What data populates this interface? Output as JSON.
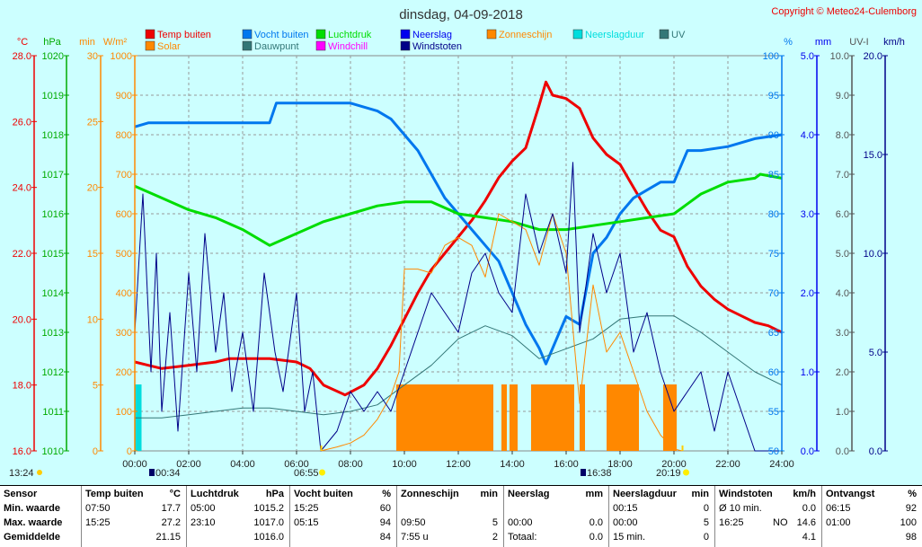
{
  "title": "dinsdag, 04-09-2018",
  "copyright": "Copyright © Meteo24-Culemborg",
  "legend": [
    {
      "label": "Temp buiten",
      "color": "#ee0000"
    },
    {
      "label": "Vocht buiten",
      "color": "#0077ee"
    },
    {
      "label": "Luchtdruk",
      "color": "#00dd00"
    },
    {
      "label": "Neerslag",
      "color": "#0000ee"
    },
    {
      "label": "Zonneschijn",
      "color": "#ff8800"
    },
    {
      "label": "Neerslagduur",
      "color": "#00dddd"
    },
    {
      "label": "UV",
      "color": "#337777"
    },
    {
      "label": "Solar",
      "color": "#ff8800"
    },
    {
      "label": "Dauwpunt",
      "color": "#337777"
    },
    {
      "label": "Windchill",
      "color": "#ff00ff"
    },
    {
      "label": "Windstoten",
      "color": "#000088"
    }
  ],
  "axes": {
    "temp": {
      "unit": "°C",
      "ticks": [
        "16.0",
        "18.0",
        "20.0",
        "22.0",
        "24.0",
        "26.0",
        "28.0"
      ]
    },
    "pressure": {
      "unit": "hPa",
      "ticks": [
        "1010",
        "1011",
        "1012",
        "1013",
        "1014",
        "1015",
        "1016",
        "1017",
        "1018",
        "1019",
        "1020"
      ]
    },
    "minutes": {
      "unit": "min",
      "ticks": [
        "0",
        "5",
        "10",
        "15",
        "20",
        "25",
        "30"
      ]
    },
    "solar": {
      "unit": "W/m²",
      "ticks": [
        "0",
        "100",
        "200",
        "300",
        "400",
        "500",
        "600",
        "700",
        "800",
        "900",
        "1000"
      ]
    },
    "humidity": {
      "unit": "%",
      "ticks": [
        "50",
        "55",
        "60",
        "65",
        "70",
        "75",
        "80",
        "85",
        "90",
        "95",
        "100"
      ]
    },
    "rain": {
      "unit": "mm",
      "ticks": [
        "0.0",
        "1.0",
        "2.0",
        "3.0",
        "4.0",
        "5.0"
      ]
    },
    "uv": {
      "unit": "UV-I",
      "ticks": [
        "0.0",
        "1.0",
        "2.0",
        "3.0",
        "4.0",
        "5.0",
        "6.0",
        "7.0",
        "8.0",
        "9.0",
        "10.0"
      ]
    },
    "wind": {
      "unit": "km/h",
      "ticks": [
        "0.0",
        "5.0",
        "10.0",
        "15.0",
        "20.0"
      ]
    },
    "time_ticks": [
      "00:00",
      "02:00",
      "04:00",
      "06:00",
      "08:00",
      "10:00",
      "12:00",
      "14:00",
      "16:00",
      "18:00",
      "20:00",
      "22:00",
      "24:00"
    ]
  },
  "markers": {
    "moonrise": "13:24",
    "moonset": "00:34",
    "sunrise": "06:55",
    "sunset": "20:19",
    "moon_transit": "16:38"
  },
  "chart_data": {
    "type": "line",
    "x_unit": "hour of day",
    "xlim": [
      0,
      24
    ],
    "series": [
      {
        "name": "Temp buiten",
        "axis": "temp",
        "ylim": [
          16,
          28
        ],
        "points": [
          [
            0,
            18.7
          ],
          [
            0.5,
            18.6
          ],
          [
            1,
            18.5
          ],
          [
            2,
            18.6
          ],
          [
            3,
            18.7
          ],
          [
            3.5,
            18.8
          ],
          [
            5,
            18.8
          ],
          [
            6,
            18.7
          ],
          [
            6.5,
            18.5
          ],
          [
            7,
            18.0
          ],
          [
            7.8,
            17.7
          ],
          [
            8.5,
            18.0
          ],
          [
            9,
            18.5
          ],
          [
            9.5,
            19.2
          ],
          [
            10,
            20.0
          ],
          [
            10.5,
            20.8
          ],
          [
            11,
            21.5
          ],
          [
            11.5,
            22.0
          ],
          [
            12,
            22.5
          ],
          [
            12.5,
            23.0
          ],
          [
            13,
            23.6
          ],
          [
            13.5,
            24.3
          ],
          [
            14,
            24.8
          ],
          [
            14.5,
            25.2
          ],
          [
            15,
            26.5
          ],
          [
            15.25,
            27.2
          ],
          [
            15.5,
            26.8
          ],
          [
            16,
            26.7
          ],
          [
            16.5,
            26.4
          ],
          [
            17,
            25.5
          ],
          [
            17.5,
            25.0
          ],
          [
            18,
            24.7
          ],
          [
            18.5,
            24.0
          ],
          [
            19,
            23.3
          ],
          [
            19.5,
            22.7
          ],
          [
            20,
            22.5
          ],
          [
            20.5,
            21.6
          ],
          [
            21,
            21.0
          ],
          [
            21.5,
            20.6
          ],
          [
            22,
            20.3
          ],
          [
            22.5,
            20.1
          ],
          [
            23,
            19.9
          ],
          [
            23.5,
            19.8
          ],
          [
            24,
            19.6
          ]
        ]
      },
      {
        "name": "Vocht buiten",
        "axis": "humidity",
        "ylim": [
          50,
          100
        ],
        "points": [
          [
            0,
            91
          ],
          [
            0.5,
            91.5
          ],
          [
            5,
            91.5
          ],
          [
            5.25,
            94
          ],
          [
            7,
            94
          ],
          [
            8,
            94
          ],
          [
            9,
            93
          ],
          [
            9.5,
            92
          ],
          [
            10,
            90
          ],
          [
            10.5,
            88
          ],
          [
            11,
            85
          ],
          [
            11.5,
            82
          ],
          [
            12,
            80
          ],
          [
            12.5,
            78
          ],
          [
            13,
            76
          ],
          [
            13.5,
            74
          ],
          [
            14,
            70
          ],
          [
            14.5,
            66
          ],
          [
            15,
            63
          ],
          [
            15.25,
            61
          ],
          [
            15.5,
            63
          ],
          [
            16,
            67
          ],
          [
            16.5,
            66
          ],
          [
            17,
            75
          ],
          [
            17.5,
            77
          ],
          [
            18,
            80
          ],
          [
            18.5,
            82
          ],
          [
            19,
            83
          ],
          [
            19.5,
            84
          ],
          [
            20,
            84
          ],
          [
            20.5,
            88
          ],
          [
            21,
            88
          ],
          [
            22,
            88.5
          ],
          [
            22.5,
            89
          ],
          [
            23,
            89.5
          ],
          [
            24,
            90
          ]
        ]
      },
      {
        "name": "Luchtdruk",
        "axis": "pressure",
        "ylim": [
          1010,
          1020
        ],
        "points": [
          [
            0,
            1016.7
          ],
          [
            1,
            1016.4
          ],
          [
            2,
            1016.1
          ],
          [
            3,
            1015.9
          ],
          [
            4,
            1015.6
          ],
          [
            5,
            1015.2
          ],
          [
            6,
            1015.5
          ],
          [
            7,
            1015.8
          ],
          [
            8,
            1016.0
          ],
          [
            9,
            1016.2
          ],
          [
            10,
            1016.3
          ],
          [
            11,
            1016.3
          ],
          [
            12,
            1016.0
          ],
          [
            13,
            1015.9
          ],
          [
            14,
            1015.8
          ],
          [
            15,
            1015.6
          ],
          [
            16,
            1015.6
          ],
          [
            17,
            1015.7
          ],
          [
            18,
            1015.8
          ],
          [
            19,
            1015.9
          ],
          [
            20,
            1016.0
          ],
          [
            21,
            1016.5
          ],
          [
            22,
            1016.8
          ],
          [
            23,
            1016.9
          ],
          [
            23.2,
            1017.0
          ],
          [
            24,
            1016.9
          ]
        ]
      },
      {
        "name": "Dauwpunt",
        "axis": "temp",
        "ylim": [
          16,
          28
        ],
        "points": [
          [
            0,
            17.0
          ],
          [
            1,
            17.0
          ],
          [
            2,
            17.1
          ],
          [
            3,
            17.2
          ],
          [
            4,
            17.3
          ],
          [
            5,
            17.3
          ],
          [
            6,
            17.2
          ],
          [
            7,
            17.1
          ],
          [
            8,
            17.2
          ],
          [
            9,
            17.4
          ],
          [
            10,
            18.0
          ],
          [
            11,
            18.6
          ],
          [
            12,
            19.4
          ],
          [
            13,
            19.8
          ],
          [
            14,
            19.5
          ],
          [
            15,
            18.8
          ],
          [
            16,
            19.1
          ],
          [
            17,
            19.4
          ],
          [
            18,
            20.0
          ],
          [
            19,
            20.1
          ],
          [
            20,
            20.1
          ],
          [
            21,
            19.6
          ],
          [
            22,
            19.0
          ],
          [
            23,
            18.4
          ],
          [
            24,
            18.0
          ]
        ]
      },
      {
        "name": "Solar",
        "axis": "solar",
        "ylim": [
          0,
          1000
        ],
        "points": [
          [
            6.9,
            0
          ],
          [
            7.5,
            10
          ],
          [
            8,
            20
          ],
          [
            8.5,
            40
          ],
          [
            9,
            80
          ],
          [
            9.5,
            140
          ],
          [
            9.8,
            200
          ],
          [
            10,
            460
          ],
          [
            10.5,
            460
          ],
          [
            11,
            450
          ],
          [
            11.5,
            520
          ],
          [
            12,
            540
          ],
          [
            12.5,
            520
          ],
          [
            13,
            440
          ],
          [
            13.5,
            600
          ],
          [
            14,
            580
          ],
          [
            14.5,
            560
          ],
          [
            15,
            470
          ],
          [
            15.5,
            600
          ],
          [
            16,
            500
          ],
          [
            16.5,
            120
          ],
          [
            17,
            420
          ],
          [
            17.5,
            250
          ],
          [
            18,
            300
          ],
          [
            18.5,
            200
          ],
          [
            19,
            100
          ],
          [
            19.5,
            40
          ],
          [
            20,
            5
          ],
          [
            20.3,
            0
          ]
        ]
      },
      {
        "name": "Windstoten",
        "axis": "wind",
        "ylim": [
          0,
          20
        ],
        "points": [
          [
            0,
            6
          ],
          [
            0.3,
            13
          ],
          [
            0.6,
            4
          ],
          [
            0.8,
            10
          ],
          [
            1,
            2
          ],
          [
            1.3,
            7
          ],
          [
            1.6,
            1
          ],
          [
            2,
            9
          ],
          [
            2.3,
            4
          ],
          [
            2.6,
            11
          ],
          [
            3,
            5
          ],
          [
            3.3,
            8
          ],
          [
            3.6,
            3
          ],
          [
            4,
            6
          ],
          [
            4.4,
            2
          ],
          [
            4.8,
            9
          ],
          [
            5.2,
            5
          ],
          [
            5.5,
            3
          ],
          [
            6,
            8
          ],
          [
            6.3,
            2
          ],
          [
            6.6,
            4
          ],
          [
            6.9,
            0
          ],
          [
            7.5,
            1
          ],
          [
            8,
            3
          ],
          [
            8.5,
            2
          ],
          [
            9,
            3
          ],
          [
            9.5,
            2
          ],
          [
            10,
            4
          ],
          [
            10.5,
            6
          ],
          [
            11,
            8
          ],
          [
            11.5,
            7
          ],
          [
            12,
            6
          ],
          [
            12.5,
            9
          ],
          [
            13,
            10
          ],
          [
            13.5,
            8
          ],
          [
            14,
            7
          ],
          [
            14.5,
            13
          ],
          [
            15,
            10
          ],
          [
            15.5,
            12
          ],
          [
            16,
            9
          ],
          [
            16.25,
            14.6
          ],
          [
            16.5,
            6
          ],
          [
            17,
            11
          ],
          [
            17.5,
            8
          ],
          [
            18,
            10
          ],
          [
            18.5,
            5
          ],
          [
            19,
            7
          ],
          [
            19.5,
            4
          ],
          [
            20,
            2
          ],
          [
            20.5,
            3
          ],
          [
            21,
            4
          ],
          [
            21.5,
            1
          ],
          [
            22,
            4
          ],
          [
            22.5,
            2
          ],
          [
            23,
            0
          ],
          [
            24,
            0
          ]
        ]
      }
    ],
    "sunshine_blocks_hours": [
      [
        9.7,
        13.3
      ],
      [
        13.6,
        13.8
      ],
      [
        13.9,
        14.2
      ],
      [
        14.7,
        16.3
      ],
      [
        16.5,
        16.7
      ],
      [
        17.5,
        18.7
      ],
      [
        19.6,
        20.1
      ]
    ],
    "rain_duration_blocks_hours": [
      [
        0,
        0.25
      ]
    ]
  },
  "stats": {
    "columns": [
      {
        "title": "Sensor",
        "unit": "",
        "rows": [
          [
            "Min. waarde",
            "",
            ""
          ],
          [
            "Max. waarde",
            "",
            ""
          ],
          [
            "Gemiddelde",
            "",
            ""
          ]
        ]
      },
      {
        "title": "Temp buiten",
        "unit": "°C",
        "rows": [
          [
            "07:50",
            "",
            "17.7"
          ],
          [
            "15:25",
            "",
            "27.2"
          ],
          [
            "",
            "",
            "21.15"
          ]
        ]
      },
      {
        "title": "Luchtdruk",
        "unit": "hPa",
        "rows": [
          [
            "05:00",
            "",
            "1015.2"
          ],
          [
            "23:10",
            "",
            "1017.0"
          ],
          [
            "",
            "",
            "1016.0"
          ]
        ]
      },
      {
        "title": "Vocht buiten",
        "unit": "%",
        "rows": [
          [
            "15:25",
            "",
            "60"
          ],
          [
            "05:15",
            "",
            "94"
          ],
          [
            "",
            "",
            "84"
          ]
        ]
      },
      {
        "title": "Zonneschijn",
        "unit": "min",
        "rows": [
          [
            "",
            "",
            ""
          ],
          [
            "09:50",
            "",
            "5"
          ],
          [
            "7:55 u",
            "",
            "2"
          ]
        ]
      },
      {
        "title": "Neerslag",
        "unit": "mm",
        "rows": [
          [
            "",
            "",
            ""
          ],
          [
            "00:00",
            "",
            "0.0"
          ],
          [
            "Totaal:",
            "",
            "0.0"
          ]
        ]
      },
      {
        "title": "Neerslagduur",
        "unit": "min",
        "rows": [
          [
            "00:15",
            "",
            "0"
          ],
          [
            "00:00",
            "",
            "5"
          ],
          [
            "15 min.",
            "",
            "0"
          ]
        ]
      },
      {
        "title": "Windstoten",
        "unit": "km/h",
        "rows": [
          [
            "Ø 10 min.",
            "",
            "0.0"
          ],
          [
            "16:25",
            "NO",
            "14.6"
          ],
          [
            "",
            "",
            "4.1"
          ]
        ]
      },
      {
        "title": "Ontvangst",
        "unit": "%",
        "rows": [
          [
            "06:15",
            "",
            "92"
          ],
          [
            "01:00",
            "",
            "100"
          ],
          [
            "",
            "",
            "98"
          ]
        ]
      }
    ]
  }
}
